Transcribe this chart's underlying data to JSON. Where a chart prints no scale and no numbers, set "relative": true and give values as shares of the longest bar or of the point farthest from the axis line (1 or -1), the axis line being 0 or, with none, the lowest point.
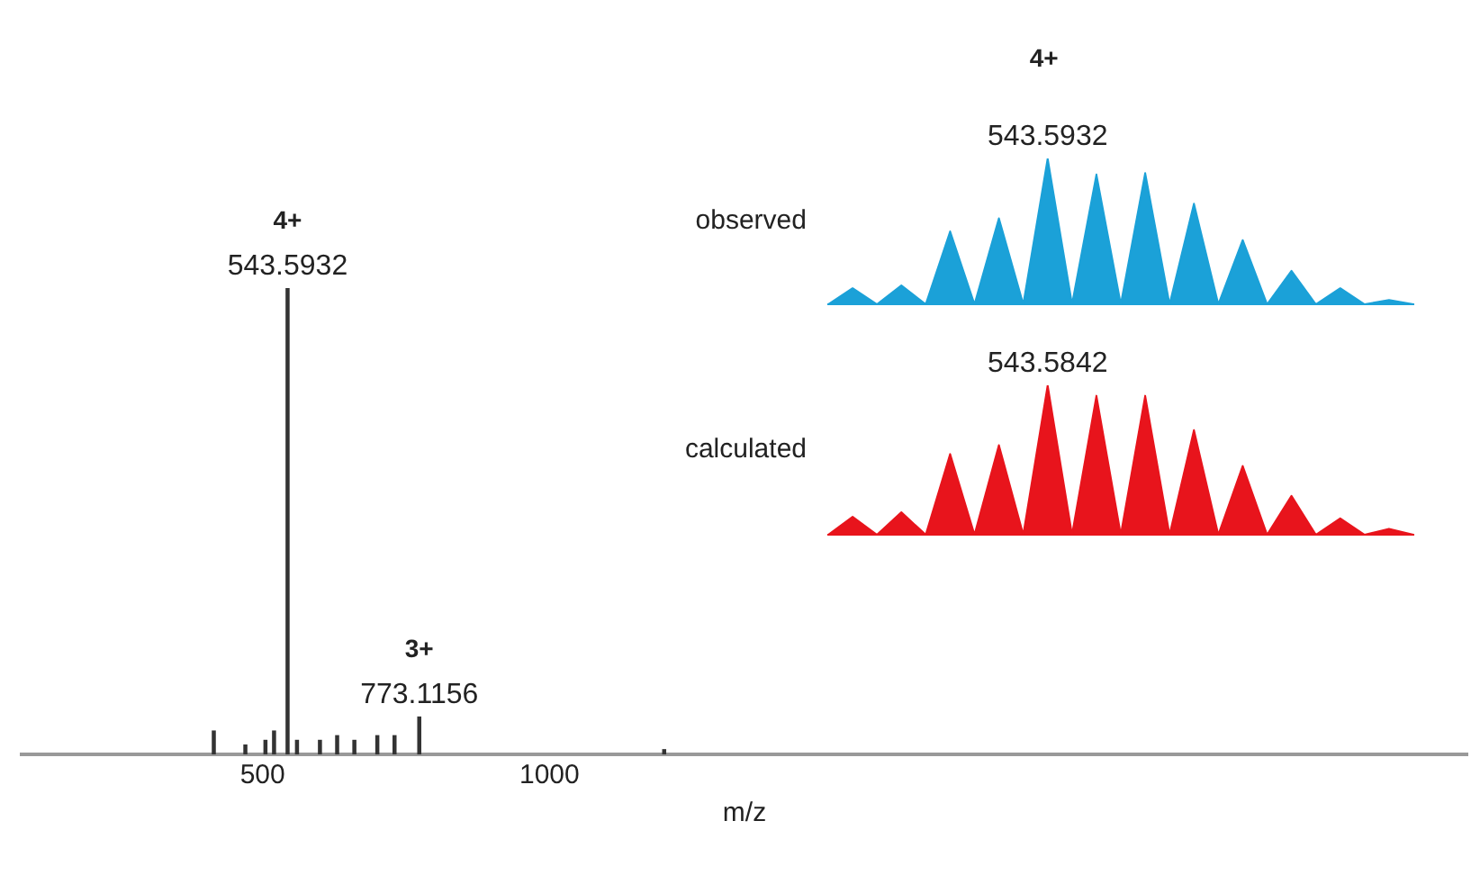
{
  "chart_data": [
    {
      "type": "bar",
      "xlabel": "m/z",
      "relative": true,
      "x": [
        415,
        470,
        505,
        520,
        543.5932,
        560,
        600,
        630,
        660,
        700,
        730,
        773.1156,
        1200
      ],
      "values": [
        0.05,
        0.02,
        0.03,
        0.05,
        1,
        0.03,
        0.03,
        0.04,
        0.03,
        0.04,
        0.04,
        0.08,
        0.01
      ],
      "color": "#333333",
      "xlim": [
        80,
        2600
      ],
      "xticks": [
        500,
        1000
      ],
      "tick_labels": "x",
      "grid": false,
      "legend": false,
      "annotations": [
        {
          "text": "4+\n543.5932",
          "x": 543.5932,
          "y": 1
        },
        {
          "text": "3+\n773.1156",
          "x": 773.1156,
          "y": 0.08
        }
      ]
    },
    {
      "type": "area",
      "title": "4+",
      "relative": true,
      "categories": [
        null,
        null,
        null,
        null,
        null,
        null,
        null,
        null,
        null,
        null,
        null,
        null,
        null,
        null,
        null,
        null,
        null,
        null,
        null,
        null,
        null,
        null,
        null,
        null,
        null
      ],
      "tick_labels": false,
      "grid": false,
      "legend": false,
      "annotations": [
        "543.5932"
      ],
      "series": [
        {
          "name": "observed",
          "color": "#1ba1d8",
          "values": [
            0,
            0.11,
            0,
            0.13,
            0,
            0.5,
            0,
            0.59,
            0,
            1,
            0,
            0.89,
            0,
            0.9,
            0,
            0.69,
            0,
            0.44,
            0,
            0.23,
            0,
            0.11,
            0,
            0.03,
            0
          ]
        }
      ]
    },
    {
      "type": "area",
      "relative": true,
      "categories": [
        null,
        null,
        null,
        null,
        null,
        null,
        null,
        null,
        null,
        null,
        null,
        null,
        null,
        null,
        null,
        null,
        null,
        null,
        null,
        null,
        null,
        null,
        null,
        null,
        null
      ],
      "tick_labels": false,
      "grid": false,
      "legend": false,
      "annotations": [
        "543.5842"
      ],
      "series": [
        {
          "name": "calculated",
          "color": "#e8141c",
          "values": [
            0,
            0.12,
            0,
            0.15,
            0,
            0.54,
            0,
            0.6,
            0,
            1,
            0,
            0.93,
            0,
            0.93,
            0,
            0.7,
            0,
            0.46,
            0,
            0.26,
            0,
            0.11,
            0,
            0.04,
            0
          ]
        }
      ]
    }
  ]
}
